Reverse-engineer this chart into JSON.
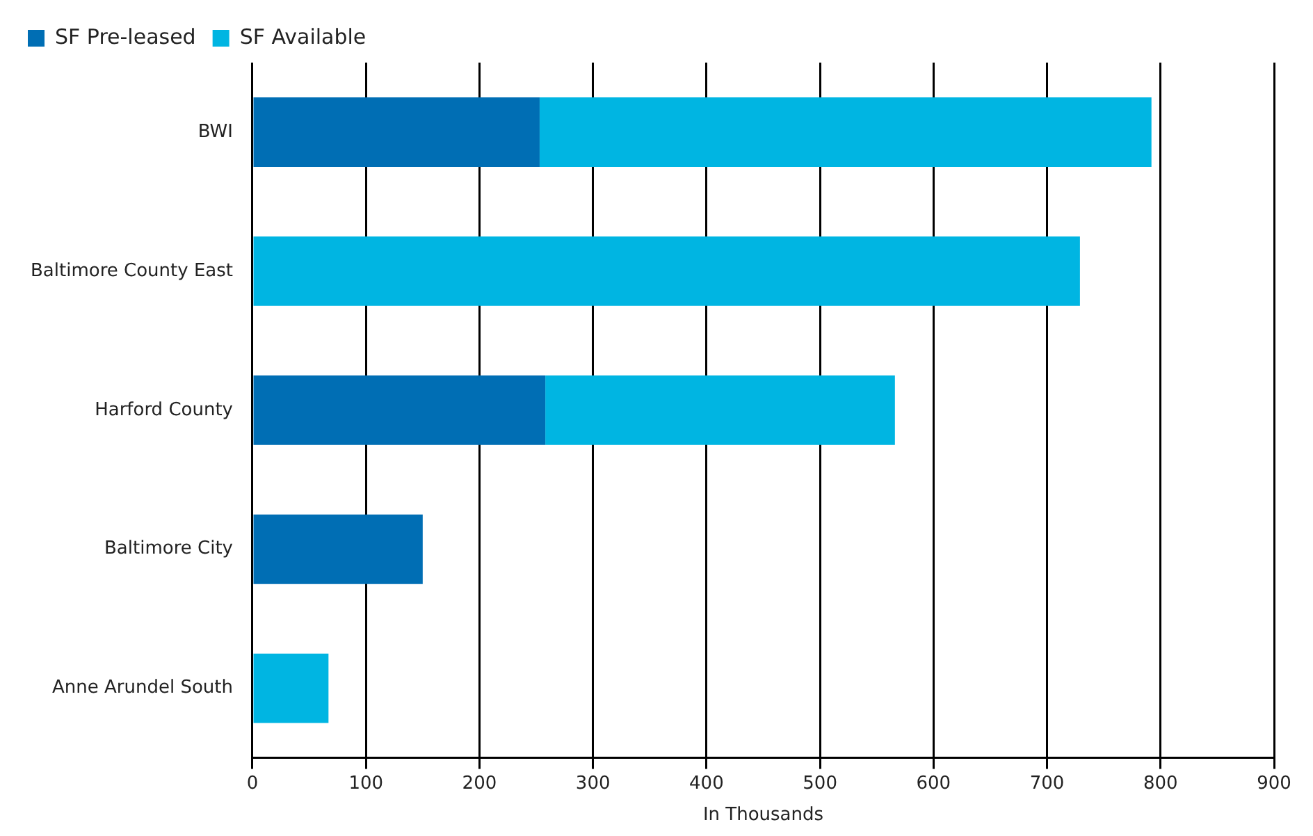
{
  "chart_data": {
    "type": "bar",
    "orientation": "horizontal",
    "stacked": true,
    "xlabel": "In Thousands",
    "categories": [
      "BWI",
      "Baltimore County East",
      "Harford County",
      "Baltimore City",
      "Anne Arundel South"
    ],
    "series": [
      {
        "name": "SF Pre-leased",
        "color": "#006eb4",
        "values": [
          253,
          0,
          258,
          150,
          0
        ]
      },
      {
        "name": "SF Available",
        "color": "#00b5e2",
        "values": [
          539,
          729,
          308,
          0,
          67
        ]
      }
    ],
    "xlim": [
      0,
      900
    ],
    "xticks": [
      0,
      100,
      200,
      300,
      400,
      500,
      600,
      700,
      800,
      900
    ],
    "grid": "x",
    "legend": "top left"
  }
}
